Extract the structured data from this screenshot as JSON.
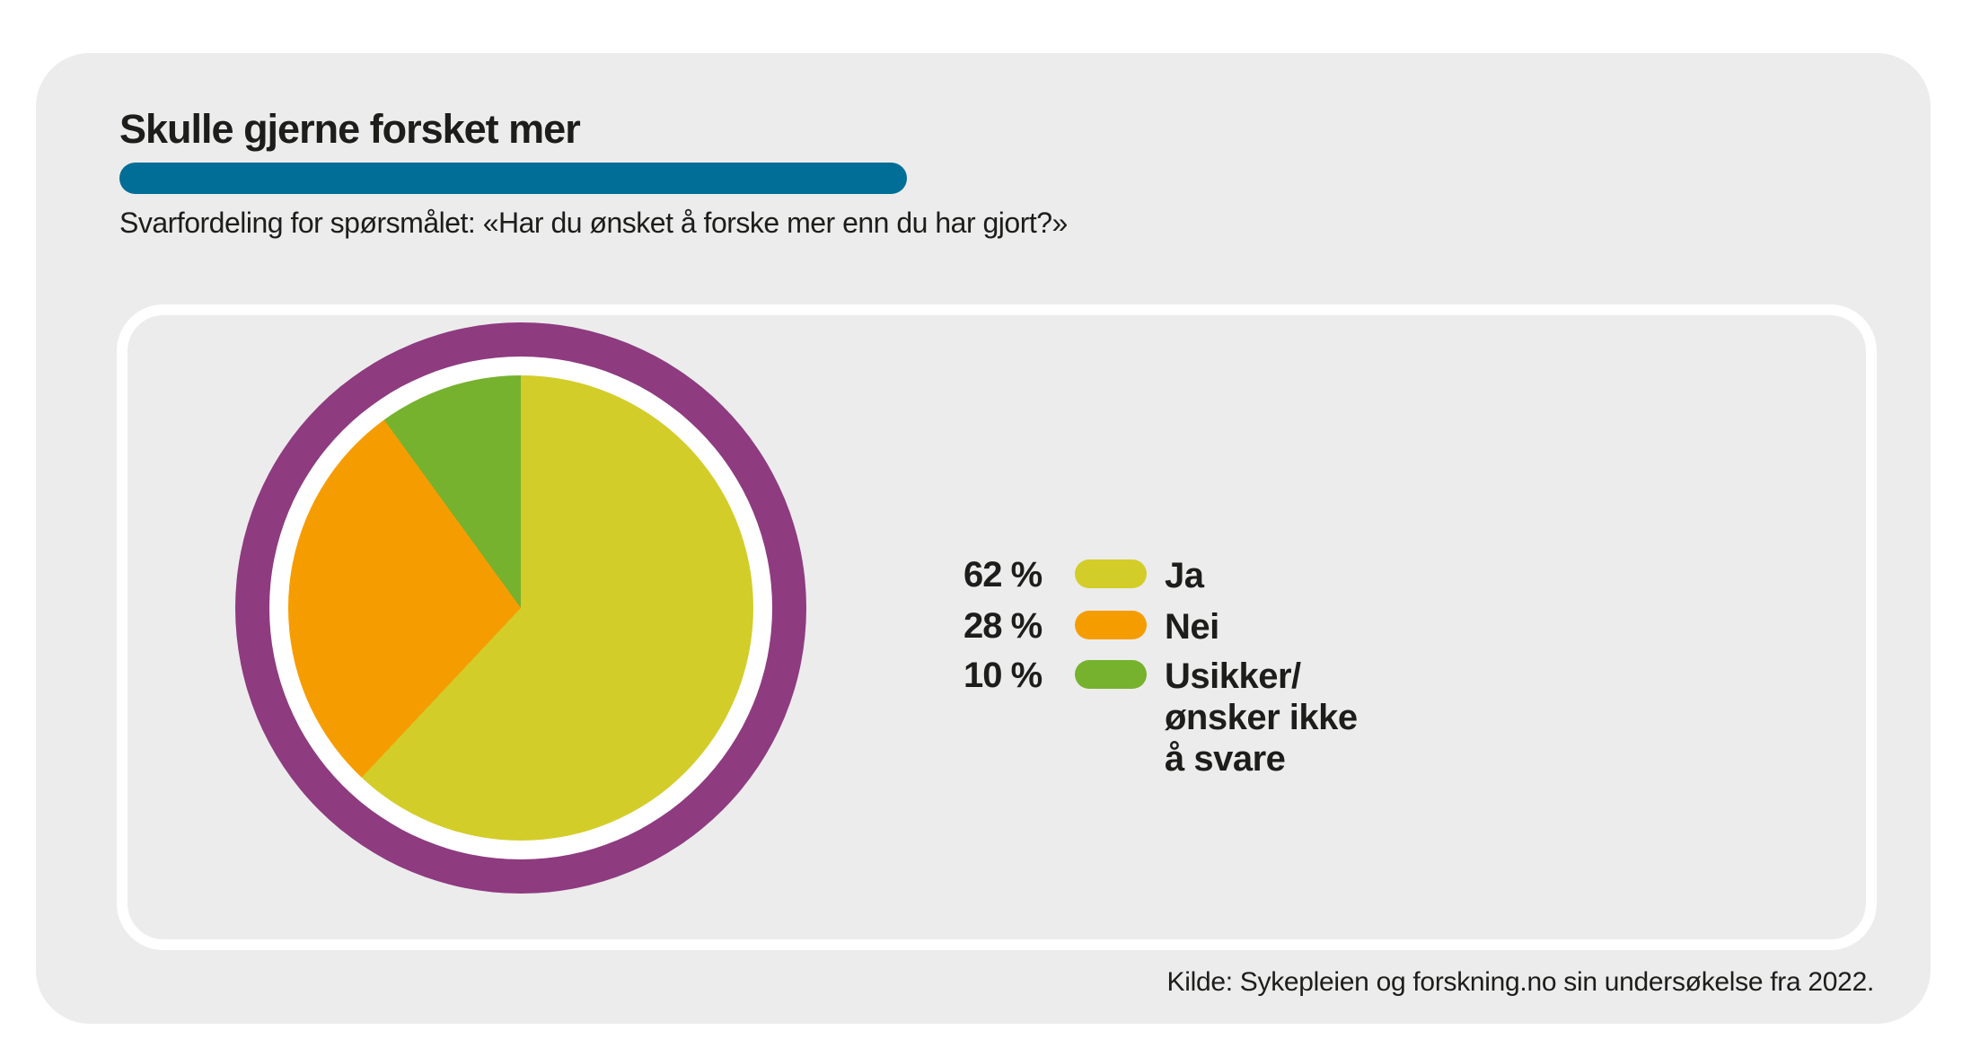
{
  "header": {
    "title": "Skulle gjerne forsket mer",
    "accent_bar_color": "#006e96",
    "subtitle": "Svarfordeling for spørsmålet: «Har du ønsket å forske mer enn du har gjort?»"
  },
  "chart_data": {
    "type": "pie",
    "title": "Skulle gjerne forsket mer",
    "question": "Har du ønsket å forske mer enn du har gjort?",
    "start_angle_deg": 0,
    "direction": "clockwise",
    "slices": [
      {
        "label": "Ja",
        "value_pct": 62,
        "color": "#d3cd29"
      },
      {
        "label": "Nei",
        "value_pct": 28,
        "color": "#f59d00"
      },
      {
        "label": "Usikker/ønsker ikke å svare",
        "value_pct": 10,
        "color": "#76b22e"
      }
    ],
    "ring": {
      "outer_color": "#8e3b80",
      "inner_gap_color": "#ffffff"
    },
    "legend_position": "right"
  },
  "legend": {
    "items": [
      {
        "pct_label": "62 %",
        "label": "Ja",
        "color": "#d3cd29"
      },
      {
        "pct_label": "28 %",
        "label": "Nei",
        "color": "#f59d00"
      },
      {
        "pct_label": "10 %",
        "label": "Usikker/\nønsker ikke\nå svare",
        "color": "#76b22e"
      }
    ]
  },
  "footer": {
    "source": "Kilde: Sykepleien og forskning.no sin undersøkelse fra 2022."
  }
}
